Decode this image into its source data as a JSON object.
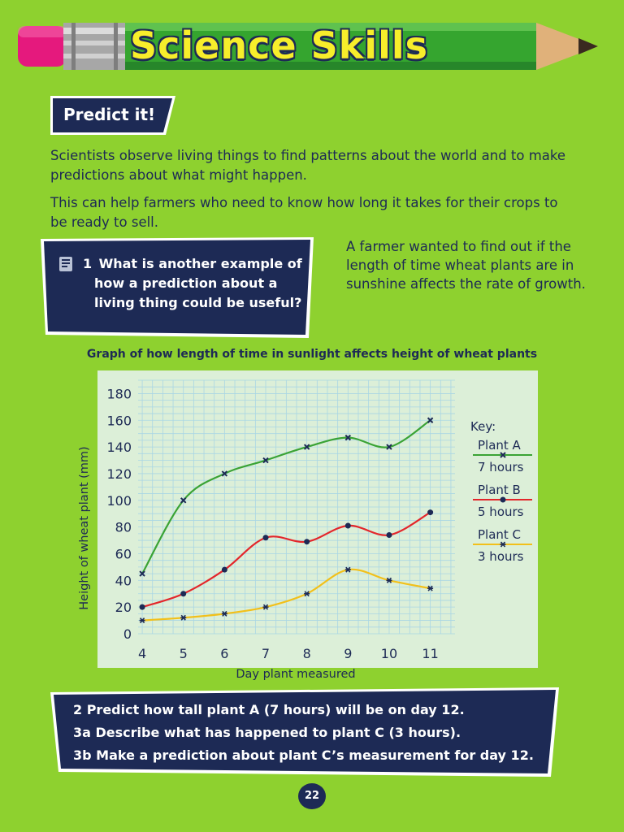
{
  "header": {
    "title": "Science Skills"
  },
  "section": {
    "label": "Predict it!"
  },
  "intro": {
    "p1": "Scientists observe living things to find patterns about the world and to make predictions about what might happen.",
    "p2": "This can help farmers who need to know how long it takes for their crops to be ready to sell."
  },
  "question1": {
    "number": "1",
    "line1": "What is another example of",
    "line2": "how a prediction about a",
    "line3": "living thing could be useful?"
  },
  "side_text": "A farmer wanted to find out if the length of time wheat plants are in sunshine affects the rate of growth.",
  "colors": {
    "plant_a": "#3aa335",
    "plant_b": "#e3262b",
    "plant_c": "#f2c01a",
    "navy": "#1d2a55",
    "background": "#8ed12f"
  },
  "chart_data": {
    "type": "line",
    "title": "Graph of how length of time in sunlight affects height of wheat plants",
    "xlabel": "Day plant measured",
    "ylabel": "Height of wheat plant (mm)",
    "x": [
      4,
      5,
      6,
      7,
      8,
      9,
      10,
      11
    ],
    "x_ticks": [
      "4",
      "5",
      "6",
      "7",
      "8",
      "9",
      "10",
      "11"
    ],
    "y_ticks": [
      "0",
      "20",
      "40",
      "60",
      "80",
      "100",
      "120",
      "140",
      "160",
      "180"
    ],
    "ylim": [
      0,
      180
    ],
    "grid": true,
    "legend": {
      "title": "Key:",
      "position": "right"
    },
    "series": [
      {
        "name": "Plant A",
        "sublabel": "7 hours",
        "color": "#3aa335",
        "marker": "x",
        "values": [
          45,
          100,
          120,
          130,
          140,
          147,
          140,
          160
        ]
      },
      {
        "name": "Plant B",
        "sublabel": "5 hours",
        "color": "#e3262b",
        "marker": "dot",
        "values": [
          20,
          30,
          48,
          72,
          69,
          81,
          74,
          91
        ]
      },
      {
        "name": "Plant C",
        "sublabel": "3 hours",
        "color": "#f2c01a",
        "marker": "star",
        "values": [
          10,
          12,
          15,
          20,
          30,
          48,
          40,
          34
        ]
      }
    ]
  },
  "questions": {
    "q2": "2 Predict how tall plant A (7 hours) will be on day 12.",
    "q3a": "3a Describe what has happened to plant C (3 hours).",
    "q3b": "3b Make a prediction about plant C’s measurement for day 12."
  },
  "page": {
    "number": "22"
  }
}
